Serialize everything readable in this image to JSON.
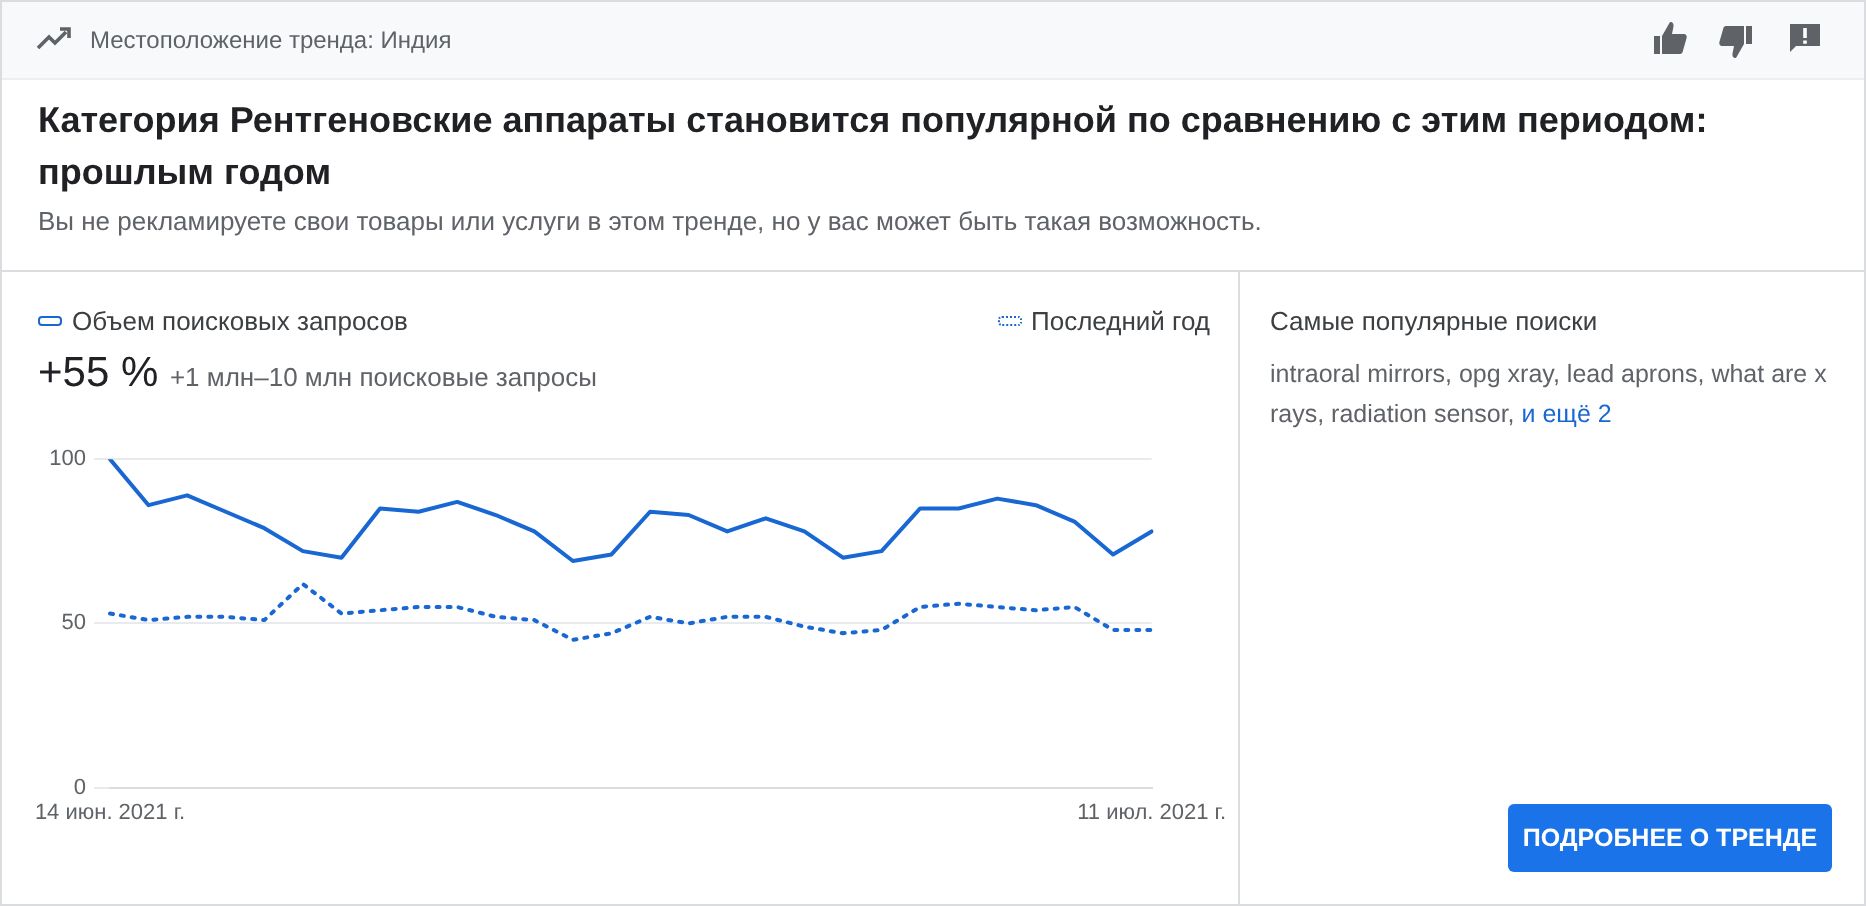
{
  "chart_data": {
    "type": "line",
    "title": "Категория Рентгеновские аппараты становится популярной по сравнению с этим периодом: прошлым годом",
    "subtitle": "Вы не рекламируете свои товары или услуги в этом тренде, но у вас может быть такая возможность.",
    "annotations": [
      "Местоположение тренда: Индия",
      "+55 %",
      "+1 млн–10 млн поисковые запросы",
      "Самые популярные поиски",
      "intraoral mirrors, opg xray, lead aprons, what are x rays, radiation sensor,",
      "и ещё 2",
      "ПОДРОБНЕЕ О ТРЕНДЕ"
    ],
    "categories": [
      "14 июн. 2021 г.",
      null,
      null,
      null,
      null,
      null,
      null,
      null,
      null,
      null,
      null,
      null,
      null,
      null,
      null,
      null,
      null,
      null,
      null,
      null,
      null,
      null,
      null,
      null,
      null,
      null,
      null,
      "11 июл. 2021 г."
    ],
    "series": [
      {
        "name": "Объем поисковых запросов",
        "color": "#1967d2",
        "line_style": "solid",
        "values": [
          100,
          86,
          89,
          84,
          79,
          72,
          70,
          85,
          84,
          87,
          83,
          78,
          69,
          71,
          84,
          83,
          78,
          82,
          78,
          70,
          72,
          85,
          85,
          88,
          86,
          81,
          71,
          78
        ]
      },
      {
        "name": "Последний год",
        "color": "#1967d2",
        "line_style": "dotted",
        "values": [
          53,
          51,
          52,
          52,
          51,
          62,
          53,
          54,
          55,
          55,
          52,
          51,
          45,
          47,
          52,
          50,
          52,
          52,
          49,
          47,
          48,
          55,
          56,
          55,
          54,
          55,
          48,
          48
        ]
      }
    ],
    "ylim": [
      0,
      100
    ],
    "yticks": [
      0,
      50,
      100
    ],
    "grid": "y",
    "legend": "top",
    "marker": "none"
  }
}
